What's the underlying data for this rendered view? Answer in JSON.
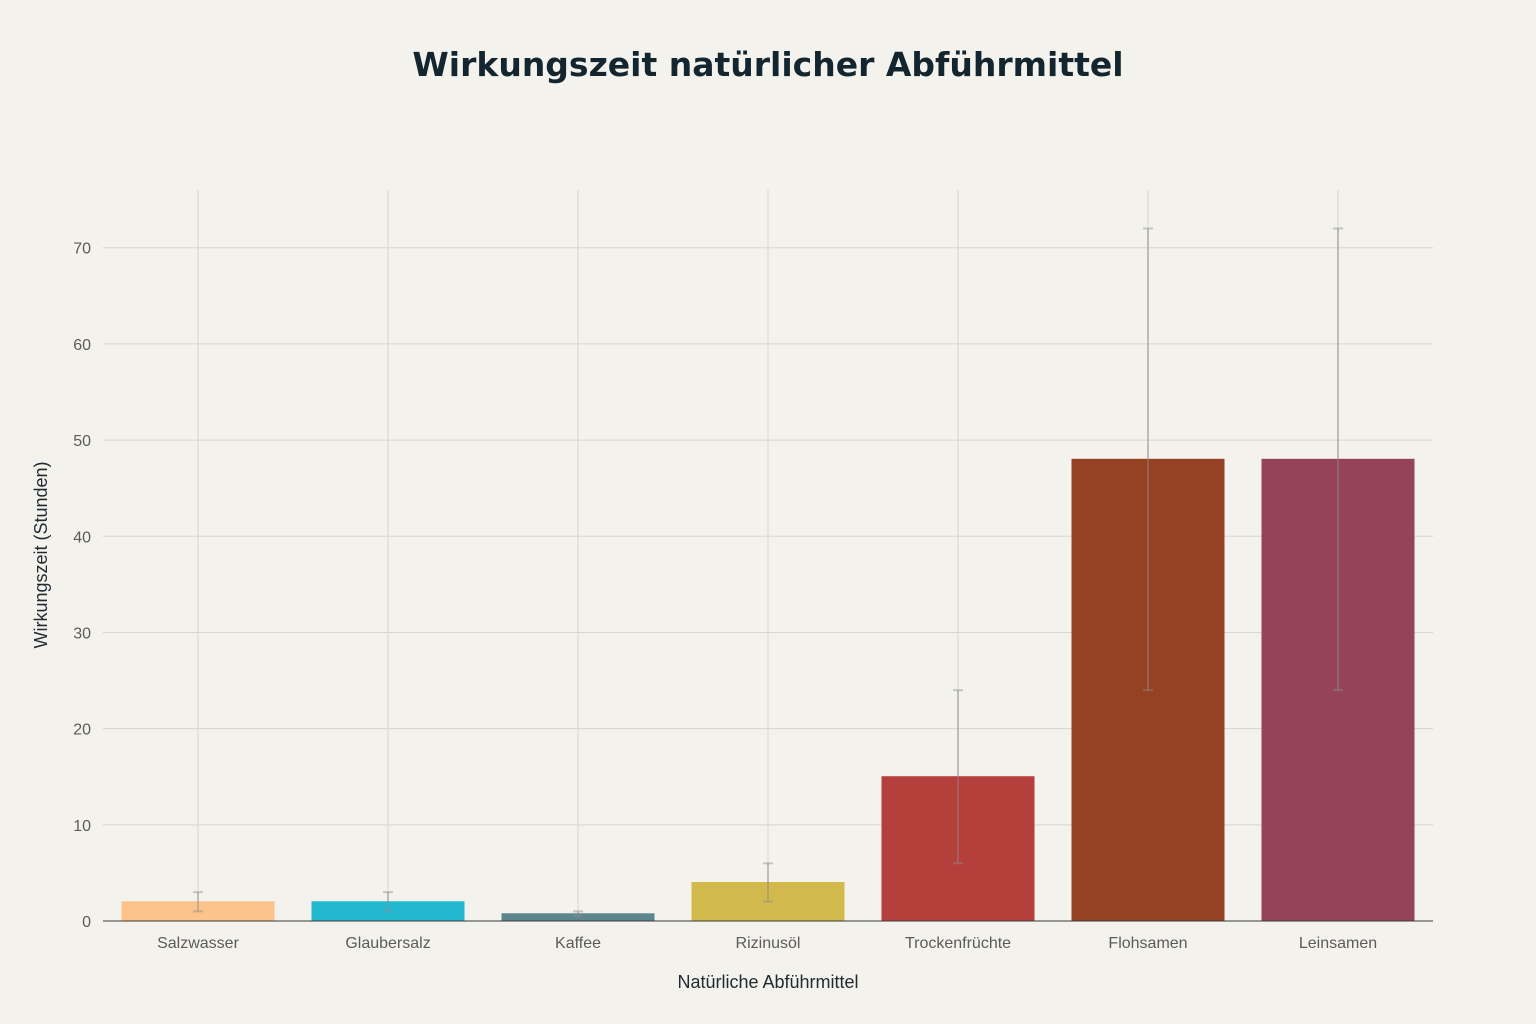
{
  "chart_data": {
    "type": "bar",
    "title": "Wirkungszeit natürlicher Abführmittel",
    "xlabel": "Natürliche Abführmittel",
    "ylabel": "Wirkungszeit (Stunden)",
    "ylim": [
      0,
      76
    ],
    "yticks": [
      0,
      10,
      20,
      30,
      40,
      50,
      60,
      70
    ],
    "grid": true,
    "categories": [
      "Salzwasser",
      "Glaubersalz",
      "Kaffee",
      "Rizinusöl",
      "Trockenfrüchte",
      "Flohsamen",
      "Leinsamen"
    ],
    "values": [
      2,
      2,
      0.75,
      4,
      15,
      48,
      48
    ],
    "error_low": [
      1,
      1,
      0.5,
      2,
      6,
      24,
      24
    ],
    "error_high": [
      3,
      3,
      1,
      6,
      24,
      72,
      72
    ],
    "colors": [
      "#fcc38a",
      "#22b8cf",
      "#5d878f",
      "#d2b94b",
      "#b53f3b",
      "#954124",
      "#944456"
    ]
  }
}
